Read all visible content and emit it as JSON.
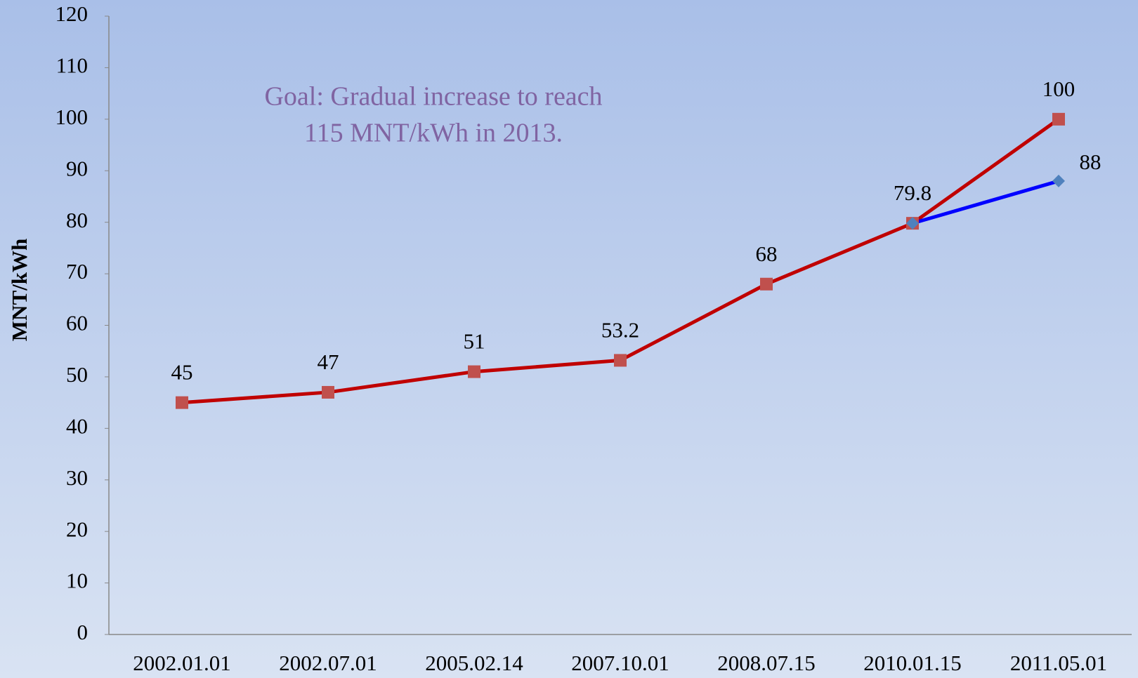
{
  "chart_data": {
    "type": "line",
    "annotation": [
      "Goal: Gradual increase to reach",
      "115 MNT/kWh in 2013."
    ],
    "y_label": "MNT/kWh",
    "categories": [
      "2002.01.01",
      "2002.07.01",
      "2005.02.14",
      "2007.10.01",
      "2008.07.15",
      "2010.01.15",
      "2011.05.01"
    ],
    "series": [
      {
        "color": "#c00000",
        "marker_color": "#c0504d",
        "marker": "square",
        "values": [
          45,
          47,
          51,
          53.2,
          68,
          79.8,
          100
        ]
      },
      {
        "color": "#0000ff",
        "marker_color": "#4f81bd",
        "marker": "diamond",
        "values": [
          null,
          null,
          null,
          null,
          null,
          79.8,
          88
        ]
      }
    ],
    "ylim": [
      0,
      120
    ],
    "yticks": [
      0,
      10,
      20,
      30,
      40,
      50,
      60,
      70,
      80,
      90,
      100,
      110,
      120
    ],
    "grid": false
  }
}
